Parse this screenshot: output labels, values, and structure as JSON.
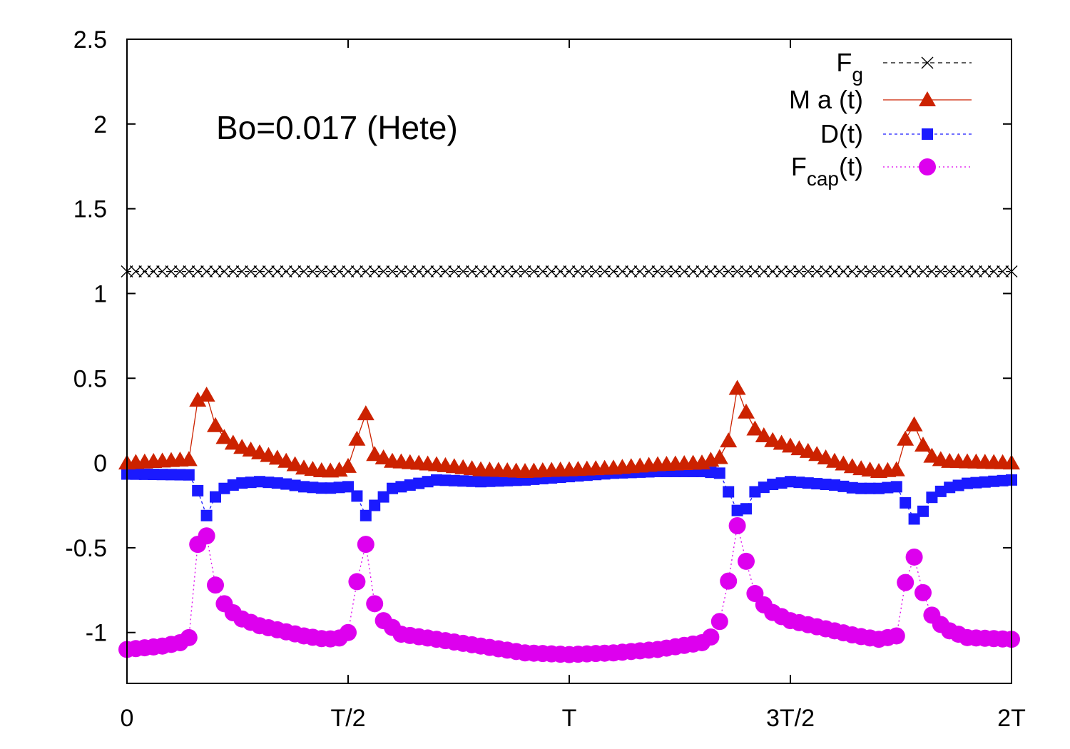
{
  "chart_data": {
    "type": "line",
    "title": "",
    "annotation": "Bo=0.017 (Hete)",
    "xlabel": "",
    "ylabel": "",
    "xlim": [
      0,
      2
    ],
    "ylim": [
      -1.3,
      2.5
    ],
    "x_ticks": [
      {
        "value": 0,
        "label": "0"
      },
      {
        "value": 0.5,
        "label": "T/2"
      },
      {
        "value": 1,
        "label": "T"
      },
      {
        "value": 1.5,
        "label": "3T/2"
      },
      {
        "value": 2,
        "label": "2T"
      }
    ],
    "y_ticks": [
      {
        "value": 2.5,
        "label": "2.5"
      },
      {
        "value": 2,
        "label": "2"
      },
      {
        "value": 1.5,
        "label": "1.5"
      },
      {
        "value": 1,
        "label": "1"
      },
      {
        "value": 0.5,
        "label": "0.5"
      },
      {
        "value": 0,
        "label": "0"
      },
      {
        "value": -0.5,
        "label": "-0.5"
      },
      {
        "value": -1,
        "label": "-1"
      }
    ],
    "legend": {
      "position": "top-right"
    },
    "series": [
      {
        "name": "Fg",
        "label_main": "F",
        "label_sub": "g",
        "label_tail": "",
        "color": "#000000",
        "marker": "cross",
        "dash": "6,5",
        "constant": 1.13
      },
      {
        "name": "M a (t)",
        "label_main": "M a (t)",
        "label_sub": "",
        "label_tail": "",
        "color": "#cc2200",
        "marker": "triangle",
        "dash": "",
        "keyframes": [
          [
            0,
            0
          ],
          [
            0.14,
            0.02
          ],
          [
            0.15,
            0.07
          ],
          [
            0.16,
            0.37
          ],
          [
            0.18,
            0.4
          ],
          [
            0.2,
            0.22
          ],
          [
            0.22,
            0.15
          ],
          [
            0.25,
            0.1
          ],
          [
            0.3,
            0.06
          ],
          [
            0.35,
            0.02
          ],
          [
            0.4,
            -0.03
          ],
          [
            0.45,
            -0.05
          ],
          [
            0.49,
            -0.04
          ],
          [
            0.5,
            -0.02
          ],
          [
            0.52,
            0.14
          ],
          [
            0.54,
            0.29
          ],
          [
            0.56,
            0.05
          ],
          [
            0.6,
            0.01
          ],
          [
            0.7,
            -0.01
          ],
          [
            0.8,
            -0.04
          ],
          [
            0.9,
            -0.05
          ],
          [
            1.0,
            -0.04
          ],
          [
            1.1,
            -0.03
          ],
          [
            1.2,
            -0.01
          ],
          [
            1.3,
            0.0
          ],
          [
            1.35,
            0.04
          ],
          [
            1.36,
            0.13
          ],
          [
            1.38,
            0.44
          ],
          [
            1.4,
            0.3
          ],
          [
            1.42,
            0.2
          ],
          [
            1.45,
            0.14
          ],
          [
            1.5,
            0.1
          ],
          [
            1.55,
            0.06
          ],
          [
            1.6,
            0.01
          ],
          [
            1.65,
            -0.03
          ],
          [
            1.7,
            -0.05
          ],
          [
            1.74,
            -0.04
          ],
          [
            1.75,
            -0.01
          ],
          [
            1.77,
            0.29
          ],
          [
            1.79,
            0.16
          ],
          [
            1.81,
            0.05
          ],
          [
            1.85,
            0.01
          ],
          [
            2.0,
            0.0
          ]
        ]
      },
      {
        "name": "D(t)",
        "label_main": "D(t)",
        "label_sub": "",
        "label_tail": "",
        "color": "#1a1aff",
        "marker": "square",
        "dash": "4,4",
        "keyframes": [
          [
            0,
            -0.065
          ],
          [
            0.14,
            -0.07
          ],
          [
            0.15,
            -0.09
          ],
          [
            0.165,
            -0.2
          ],
          [
            0.18,
            -0.31
          ],
          [
            0.2,
            -0.2
          ],
          [
            0.22,
            -0.15
          ],
          [
            0.25,
            -0.12
          ],
          [
            0.3,
            -0.11
          ],
          [
            0.35,
            -0.12
          ],
          [
            0.4,
            -0.14
          ],
          [
            0.45,
            -0.15
          ],
          [
            0.5,
            -0.14
          ],
          [
            0.51,
            -0.16
          ],
          [
            0.53,
            -0.23
          ],
          [
            0.55,
            -0.39
          ],
          [
            0.56,
            -0.25
          ],
          [
            0.6,
            -0.15
          ],
          [
            0.7,
            -0.1
          ],
          [
            0.8,
            -0.11
          ],
          [
            0.9,
            -0.1
          ],
          [
            1.0,
            -0.08
          ],
          [
            1.1,
            -0.06
          ],
          [
            1.2,
            -0.05
          ],
          [
            1.3,
            -0.05
          ],
          [
            1.34,
            -0.06
          ],
          [
            1.35,
            -0.08
          ],
          [
            1.36,
            -0.17
          ],
          [
            1.38,
            -0.28
          ],
          [
            1.4,
            -0.27
          ],
          [
            1.42,
            -0.17
          ],
          [
            1.45,
            -0.13
          ],
          [
            1.5,
            -0.11
          ],
          [
            1.55,
            -0.12
          ],
          [
            1.6,
            -0.13
          ],
          [
            1.65,
            -0.15
          ],
          [
            1.7,
            -0.15
          ],
          [
            1.74,
            -0.14
          ],
          [
            1.75,
            -0.16
          ],
          [
            1.77,
            -0.31
          ],
          [
            1.79,
            -0.35
          ],
          [
            1.81,
            -0.22
          ],
          [
            1.85,
            -0.15
          ],
          [
            1.9,
            -0.12
          ],
          [
            2.0,
            -0.1
          ]
        ]
      },
      {
        "name": "Fcap(t)",
        "label_main": "F",
        "label_sub": "cap",
        "label_tail": "(t)",
        "color": "#dd00ee",
        "marker": "circle",
        "dash": "2,4",
        "keyframes": [
          [
            0,
            -1.1
          ],
          [
            0.08,
            -1.08
          ],
          [
            0.12,
            -1.06
          ],
          [
            0.14,
            -1.03
          ],
          [
            0.15,
            -0.97
          ],
          [
            0.16,
            -0.48
          ],
          [
            0.18,
            -0.43
          ],
          [
            0.2,
            -0.72
          ],
          [
            0.22,
            -0.83
          ],
          [
            0.25,
            -0.91
          ],
          [
            0.3,
            -0.96
          ],
          [
            0.35,
            -0.99
          ],
          [
            0.4,
            -1.02
          ],
          [
            0.45,
            -1.04
          ],
          [
            0.49,
            -1.03
          ],
          [
            0.5,
            -1.0
          ],
          [
            0.52,
            -0.7
          ],
          [
            0.54,
            -0.48
          ],
          [
            0.56,
            -0.83
          ],
          [
            0.58,
            -0.93
          ],
          [
            0.62,
            -1.01
          ],
          [
            0.7,
            -1.04
          ],
          [
            0.8,
            -1.08
          ],
          [
            0.9,
            -1.12
          ],
          [
            1.0,
            -1.13
          ],
          [
            1.1,
            -1.12
          ],
          [
            1.2,
            -1.1
          ],
          [
            1.3,
            -1.06
          ],
          [
            1.33,
            -1.01
          ],
          [
            1.35,
            -0.86
          ],
          [
            1.38,
            -0.37
          ],
          [
            1.4,
            -0.58
          ],
          [
            1.42,
            -0.77
          ],
          [
            1.45,
            -0.87
          ],
          [
            1.5,
            -0.93
          ],
          [
            1.55,
            -0.96
          ],
          [
            1.6,
            -0.99
          ],
          [
            1.65,
            -1.02
          ],
          [
            1.7,
            -1.04
          ],
          [
            1.74,
            -1.02
          ],
          [
            1.75,
            -0.96
          ],
          [
            1.77,
            -0.45
          ],
          [
            1.79,
            -0.66
          ],
          [
            1.81,
            -0.87
          ],
          [
            1.85,
            -0.98
          ],
          [
            1.9,
            -1.03
          ],
          [
            2.0,
            -1.04
          ]
        ]
      }
    ]
  }
}
